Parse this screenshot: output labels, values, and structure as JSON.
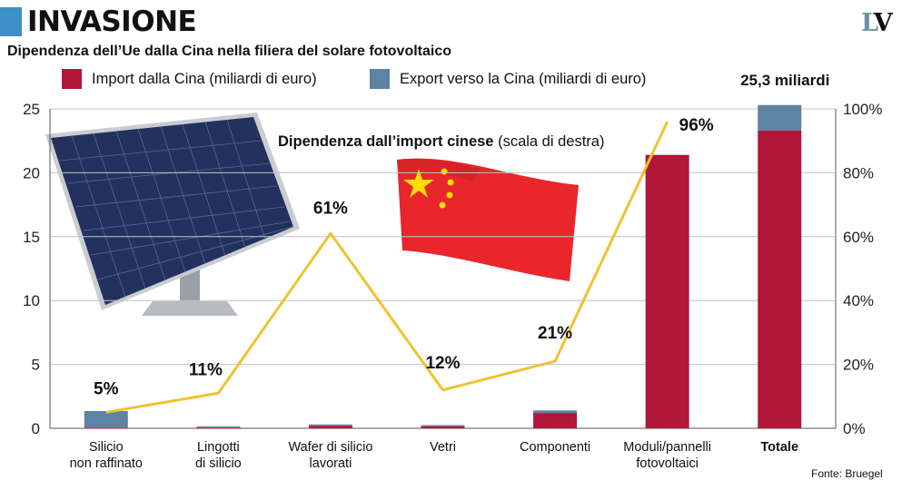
{
  "header": {
    "headline": "INVASIONE",
    "logo_l": "L",
    "logo_v": "V",
    "accent": "#3d8fc7"
  },
  "chart_data": {
    "type": "bar",
    "title": "Dipendenza dell’Ue dalla Cina nella filiera del solare fotovoltaico",
    "categories": [
      [
        "Silicio",
        "non raffinato"
      ],
      [
        "Lingotti",
        "di silicio"
      ],
      [
        "Wafer di silicio",
        "lavorati"
      ],
      [
        "Vetri"
      ],
      [
        "Componenti"
      ],
      [
        "Moduli/pannelli",
        "fotovoltaici"
      ],
      [
        "Totale"
      ]
    ],
    "bold_category": "Totale",
    "series": [
      {
        "name": "Import dalla Cina (miliardi di euro)",
        "color": "#b0173a",
        "values": [
          0.05,
          0.05,
          0.2,
          0.15,
          1.2,
          21.4,
          23.3
        ]
      },
      {
        "name": "Export verso la Cina (miliardi di euro)",
        "color": "#5d84a2",
        "values": [
          1.3,
          0.1,
          0.1,
          0.1,
          0.2,
          0.0,
          2.0
        ]
      }
    ],
    "line": {
      "name_bold": "Dipendenza dall’import cinese",
      "name_rest": " (scala di destra)",
      "color": "#f0c230",
      "values": [
        5,
        11,
        61,
        12,
        21,
        96
      ],
      "labels": [
        "5%",
        "11%",
        "61%",
        "12%",
        "21%",
        "96%"
      ]
    },
    "y_left": {
      "min": 0,
      "max": 25,
      "ticks": [
        "0",
        "5",
        "10",
        "15",
        "20",
        "25"
      ]
    },
    "y_right": {
      "min": 0,
      "max": 100,
      "ticks": [
        "0%",
        "20%",
        "40%",
        "60%",
        "80%",
        "100%"
      ]
    },
    "total_label": "25,3 miliardi",
    "grid": true,
    "legend": "top"
  },
  "source": "Fonte: Bruegel"
}
